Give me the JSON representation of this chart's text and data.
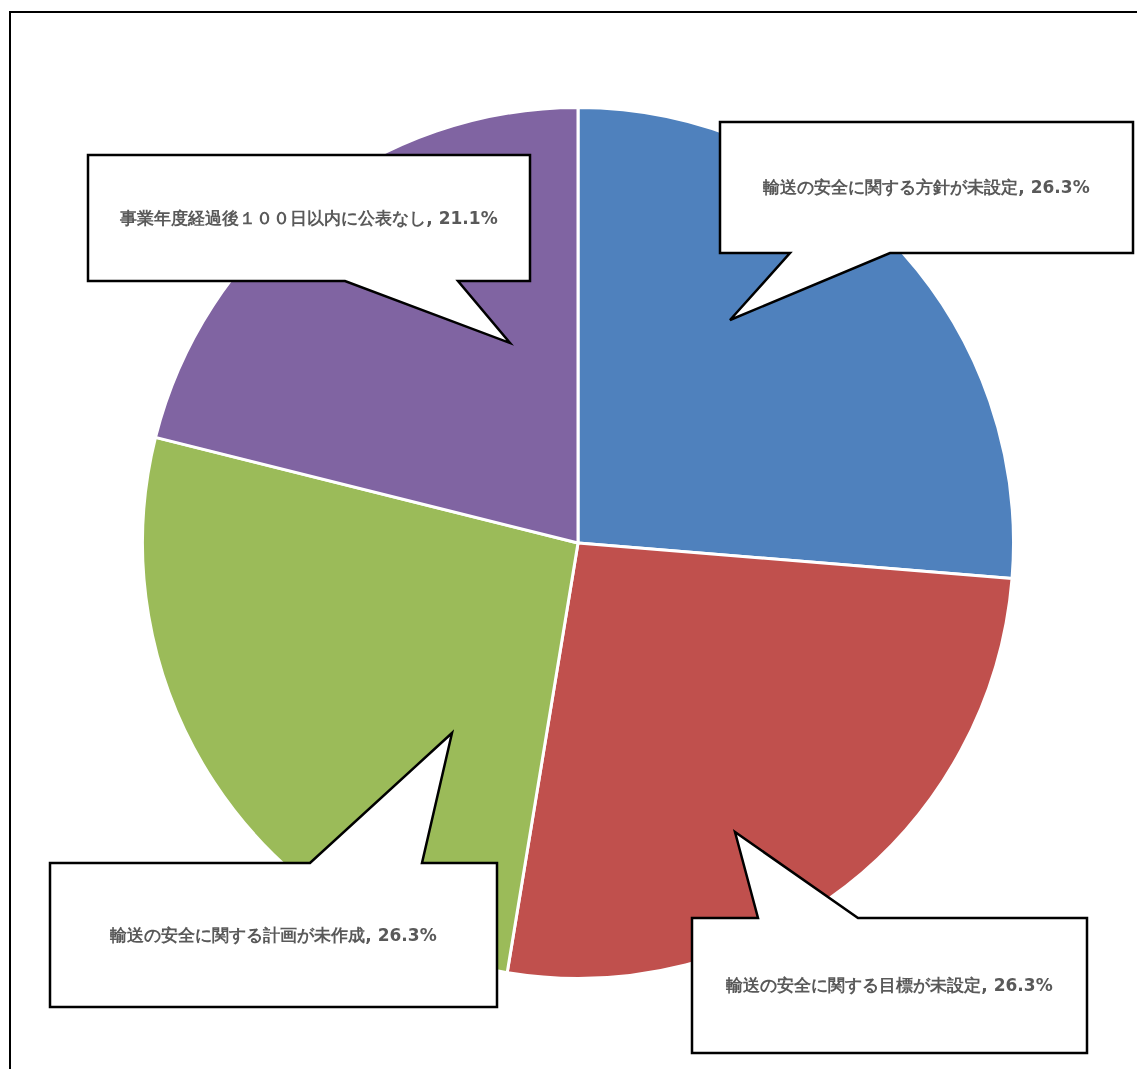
{
  "chart_data": {
    "type": "pie",
    "categories": [
      "輸送の安全に関する方針が未設定",
      "輸送の安全に関する目標が未設定",
      "輸送の安全に関する計画が未作成",
      "事業年度経過後１００日以内に公表なし"
    ],
    "values": [
      26.3,
      26.3,
      26.3,
      21.1
    ],
    "colors": [
      "#4f81bd",
      "#c0504d",
      "#9bbb59",
      "#8064a2"
    ],
    "value_labels": [
      "26.3%",
      "26.3%",
      "26.3%",
      "21.1%"
    ],
    "legend": false
  }
}
